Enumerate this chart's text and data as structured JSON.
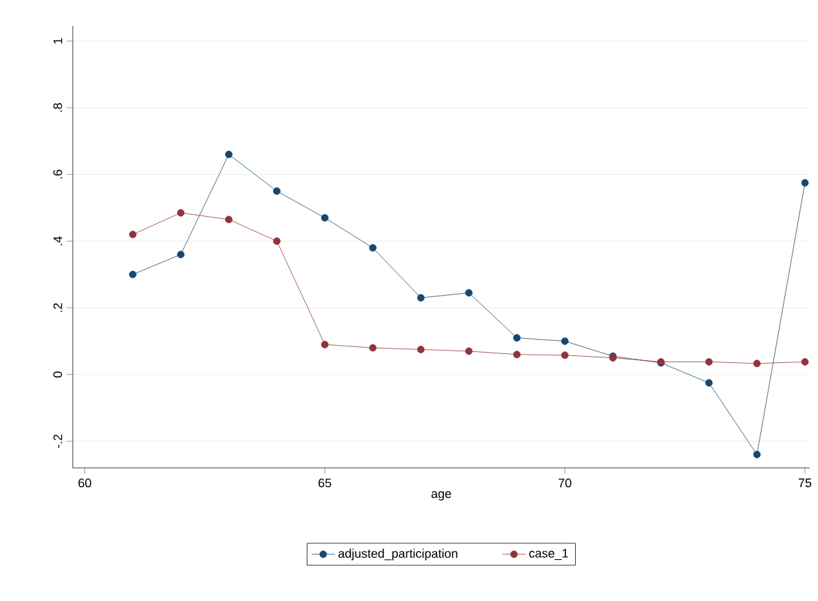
{
  "chart_data": {
    "type": "line",
    "xlabel": "age",
    "x": [
      61,
      62,
      63,
      64,
      65,
      66,
      67,
      68,
      69,
      70,
      71,
      72,
      73,
      74,
      75
    ],
    "series": [
      {
        "name": "adjusted_participation",
        "color": "#1a476f",
        "values": [
          0.3,
          0.36,
          0.66,
          0.55,
          0.47,
          0.38,
          0.23,
          0.245,
          0.11,
          0.1,
          0.055,
          0.035,
          -0.025,
          -0.24,
          0.575
        ]
      },
      {
        "name": "case_1",
        "color": "#90353b",
        "values": [
          0.42,
          0.485,
          0.465,
          0.4,
          0.09,
          0.08,
          0.075,
          0.07,
          0.06,
          0.058,
          0.05,
          0.038,
          0.038,
          0.033,
          0.038
        ]
      }
    ],
    "xlim": [
      59.75,
      75.1
    ],
    "ylim": [
      -0.28,
      1.045
    ],
    "xticks": [
      60,
      65,
      70,
      75
    ],
    "yticks": [
      {
        "value": -0.2,
        "label": "-.2"
      },
      {
        "value": 0,
        "label": "0"
      },
      {
        "value": 0.2,
        "label": ".2"
      },
      {
        "value": 0.4,
        "label": ".4"
      },
      {
        "value": 0.6,
        "label": ".6"
      },
      {
        "value": 0.8,
        "label": ".8"
      },
      {
        "value": 1,
        "label": "1"
      }
    ],
    "grid": "y",
    "legend": "bottom",
    "marker": "circle",
    "line_style": "solid"
  }
}
